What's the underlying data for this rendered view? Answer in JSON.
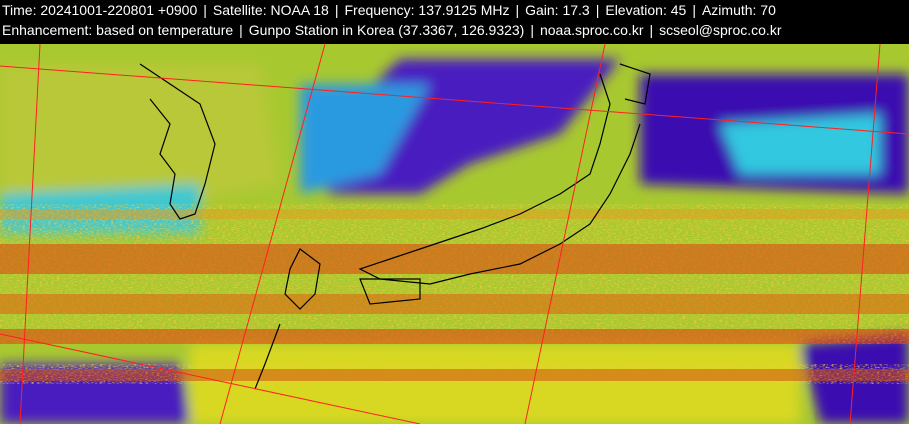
{
  "header": {
    "line1": [
      "Time: 20241001-220801 +0900",
      "Satellite: NOAA 18",
      "Frequency: 137.9125 MHz",
      "Gain: 17.3",
      "Elevation: 45",
      "Azimuth: 70"
    ],
    "line2": [
      "Enhancement: based on temperature",
      "Gunpo Station in Korea (37.3367, 126.9323)",
      "noaa.sproc.co.kr",
      "scseol@sproc.co.kr"
    ],
    "separator": "|"
  },
  "map": {
    "type": "NOAA APT satellite image, temperature enhanced",
    "region": "Korea and Japan",
    "colors": {
      "cold_cloud": "#3a10b0",
      "cool": "#1fd0e0",
      "mid": "#9adc3a",
      "warm": "#d8d820",
      "hot": "#e03a10",
      "grid": "#ff0000",
      "coastline": "#000000"
    }
  }
}
